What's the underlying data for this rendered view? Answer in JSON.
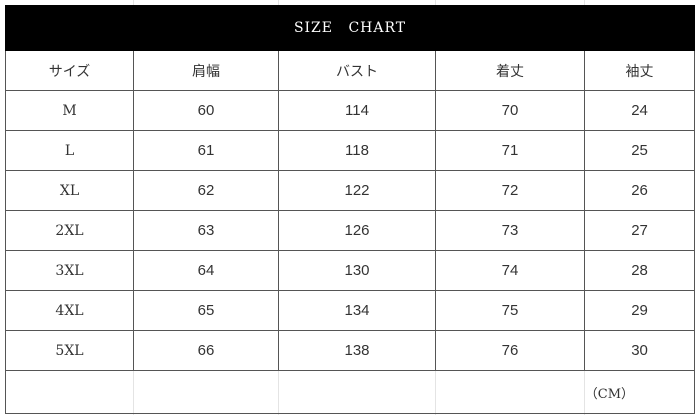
{
  "title": "SIZE  CHART",
  "headers": [
    "サイズ",
    "肩幅",
    "バスト",
    "着丈",
    "袖丈"
  ],
  "rows": [
    [
      "M",
      "60",
      "114",
      "70",
      "24"
    ],
    [
      "L",
      "61",
      "118",
      "71",
      "25"
    ],
    [
      "XL",
      "62",
      "122",
      "72",
      "26"
    ],
    [
      "2XL",
      "63",
      "126",
      "73",
      "27"
    ],
    [
      "3XL",
      "64",
      "130",
      "74",
      "28"
    ],
    [
      "4XL",
      "65",
      "134",
      "75",
      "29"
    ],
    [
      "5XL",
      "66",
      "138",
      "76",
      "30"
    ]
  ],
  "unit": "（CM）"
}
